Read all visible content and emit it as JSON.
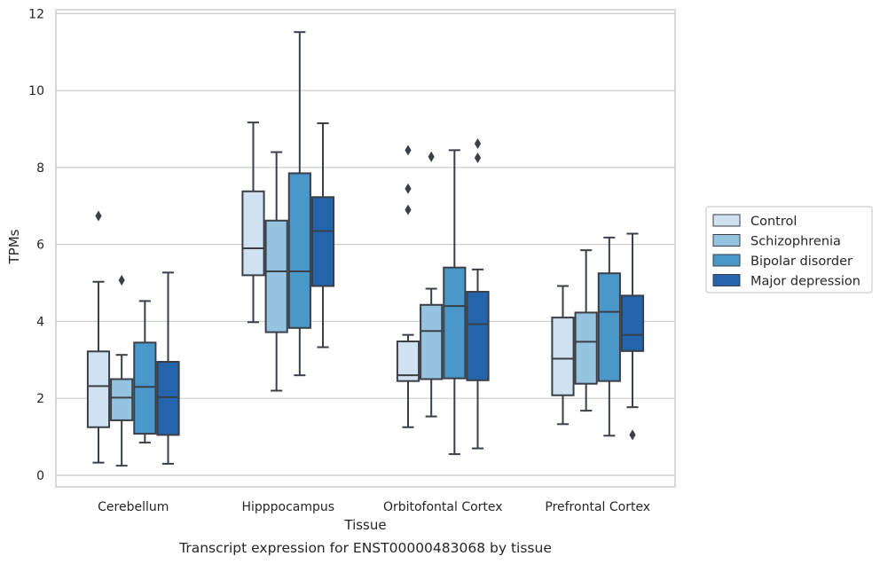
{
  "chart_data": {
    "type": "box",
    "caption": "Transcript expression for ENST00000483068 by tissue",
    "xlabel": "Tissue",
    "ylabel": "TPMs",
    "ylim": [
      -0.3,
      12.1
    ],
    "yticks": [
      0,
      2,
      4,
      6,
      8,
      10,
      12
    ],
    "grid": true,
    "legend_position": "right",
    "categories": [
      "Cerebellum",
      "Hipppocampus",
      "Orbitofontal Cortex",
      "Prefrontal Cortex"
    ],
    "series": [
      {
        "name": "Control",
        "color": "#d0e1f2",
        "boxes": [
          {
            "whislo": 0.33,
            "q1": 1.25,
            "med": 2.32,
            "q3": 3.22,
            "whishi": 5.03,
            "fliers": [
              6.74
            ]
          },
          {
            "whislo": 3.98,
            "q1": 5.2,
            "med": 5.9,
            "q3": 7.38,
            "whishi": 9.17,
            "fliers": []
          },
          {
            "whislo": 1.25,
            "q1": 2.45,
            "med": 2.6,
            "q3": 3.48,
            "whishi": 3.65,
            "fliers": [
              6.9,
              7.45,
              8.45
            ]
          },
          {
            "whislo": 1.33,
            "q1": 2.08,
            "med": 3.03,
            "q3": 4.1,
            "whishi": 4.92,
            "fliers": []
          }
        ]
      },
      {
        "name": "Schizophrenia",
        "color": "#94c4df",
        "boxes": [
          {
            "whislo": 0.25,
            "q1": 1.43,
            "med": 2.02,
            "q3": 2.5,
            "whishi": 3.13,
            "fliers": [
              5.07
            ]
          },
          {
            "whislo": 2.2,
            "q1": 3.72,
            "med": 5.3,
            "q3": 6.62,
            "whishi": 8.4,
            "fliers": []
          },
          {
            "whislo": 1.53,
            "q1": 2.5,
            "med": 3.75,
            "q3": 4.43,
            "whishi": 4.85,
            "fliers": [
              8.28
            ]
          },
          {
            "whislo": 1.68,
            "q1": 2.38,
            "med": 3.47,
            "q3": 4.23,
            "whishi": 5.85,
            "fliers": []
          }
        ]
      },
      {
        "name": "Bipolar disorder",
        "color": "#4a98c9",
        "boxes": [
          {
            "whislo": 0.85,
            "q1": 1.08,
            "med": 2.3,
            "q3": 3.45,
            "whishi": 4.53,
            "fliers": []
          },
          {
            "whislo": 2.6,
            "q1": 3.83,
            "med": 5.3,
            "q3": 7.85,
            "whishi": 11.52,
            "fliers": []
          },
          {
            "whislo": 0.55,
            "q1": 2.52,
            "med": 4.4,
            "q3": 5.4,
            "whishi": 8.45,
            "fliers": []
          },
          {
            "whislo": 1.03,
            "q1": 2.45,
            "med": 4.25,
            "q3": 5.25,
            "whishi": 6.18,
            "fliers": []
          }
        ]
      },
      {
        "name": "Major depression",
        "color": "#2464ab",
        "boxes": [
          {
            "whislo": 0.3,
            "q1": 1.05,
            "med": 2.03,
            "q3": 2.95,
            "whishi": 5.27,
            "fliers": []
          },
          {
            "whislo": 3.33,
            "q1": 4.92,
            "med": 6.35,
            "q3": 7.23,
            "whishi": 9.15,
            "fliers": []
          },
          {
            "whislo": 0.7,
            "q1": 2.47,
            "med": 3.93,
            "q3": 4.77,
            "whishi": 5.35,
            "fliers": [
              8.25,
              8.62
            ]
          },
          {
            "whislo": 1.77,
            "q1": 3.23,
            "med": 3.65,
            "q3": 4.67,
            "whishi": 6.28,
            "fliers": [
              1.05
            ]
          }
        ]
      }
    ]
  }
}
